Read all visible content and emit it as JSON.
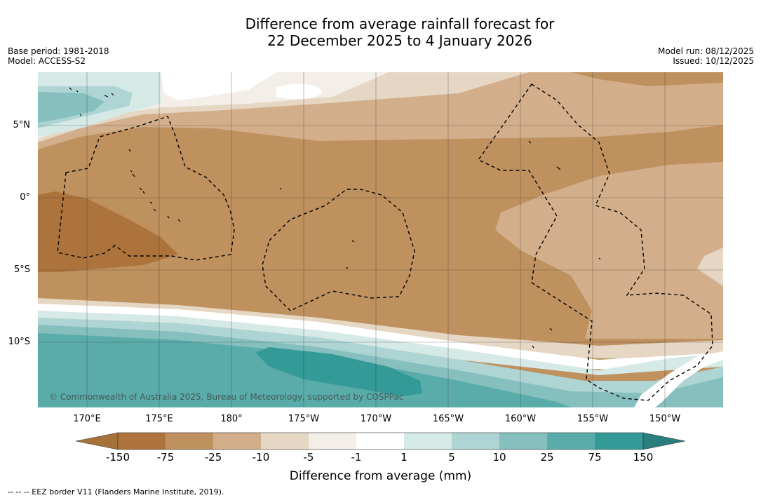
{
  "header": {
    "title_line1": "Difference from average rainfall forecast for",
    "title_line2": "22 December 2025 to 4 January 2026",
    "base_period": "Base period: 1981-2018",
    "model": "Model: ACCESS-S2",
    "model_run": "Model run: 08/12/2025",
    "issued": "Issued: 10/12/2025"
  },
  "map": {
    "lat_labels": [
      "5°N",
      "0°",
      "5°S",
      "10°S"
    ],
    "lon_labels": [
      "170°E",
      "175°E",
      "180°",
      "175°W",
      "170°W",
      "165°W",
      "160°W",
      "155°W",
      "150°W"
    ],
    "copyright": "© Commonwealth of Australia 2025, Bureau of Meteorology, supported by COSPPac"
  },
  "legend": {
    "ticks": [
      "-150",
      "-75",
      "-25",
      "-10",
      "-5",
      "-1",
      "1",
      "5",
      "10",
      "25",
      "75",
      "150"
    ],
    "title": "Difference from average (mm)",
    "colors": [
      "#a6713a",
      "#ad733c",
      "#be915f",
      "#d2af8a",
      "#e6d6c4",
      "#f3eee8",
      "#ffffff",
      "#d5e9e7",
      "#aed5d3",
      "#85bfbe",
      "#5aacab",
      "#349a98",
      "#2a7f7c"
    ]
  },
  "footnote": "--  --  -- EEZ border V11 (Flanders Marine Institute, 2019)."
}
